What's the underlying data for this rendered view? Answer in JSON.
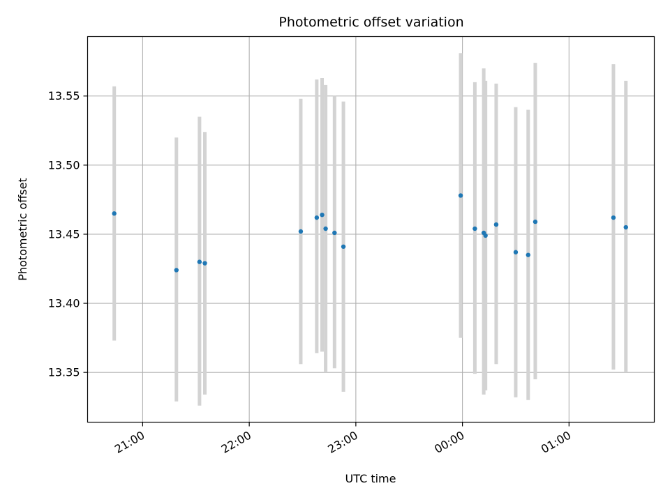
{
  "chart_data": {
    "type": "scatter",
    "title": "Photometric offset variation",
    "xlabel": "UTC time",
    "ylabel": "Photometric offset",
    "x_tick_labels": [
      "21:00",
      "22:00",
      "23:00",
      "00:00",
      "01:00"
    ],
    "y_tick_labels": [
      "13.35",
      "13.40",
      "13.45",
      "13.50",
      "13.55"
    ],
    "grid": true,
    "errorbar_color": "#d3d3d3",
    "marker_color": "#1f77b4",
    "xlim": [
      "20:29",
      "01:48"
    ],
    "ylim": [
      13.314,
      13.593
    ],
    "points": [
      {
        "t": "20:44",
        "y": 13.465,
        "lo": 13.373,
        "hi": 13.557
      },
      {
        "t": "21:19",
        "y": 13.424,
        "lo": 13.329,
        "hi": 13.52
      },
      {
        "t": "21:32",
        "y": 13.43,
        "lo": 13.326,
        "hi": 13.535
      },
      {
        "t": "21:35",
        "y": 13.429,
        "lo": 13.334,
        "hi": 13.524
      },
      {
        "t": "22:29",
        "y": 13.452,
        "lo": 13.356,
        "hi": 13.548
      },
      {
        "t": "22:38",
        "y": 13.462,
        "lo": 13.364,
        "hi": 13.562
      },
      {
        "t": "22:41",
        "y": 13.464,
        "lo": 13.365,
        "hi": 13.563
      },
      {
        "t": "22:43",
        "y": 13.454,
        "lo": 13.35,
        "hi": 13.558
      },
      {
        "t": "22:48",
        "y": 13.451,
        "lo": 13.353,
        "hi": 13.55
      },
      {
        "t": "22:53",
        "y": 13.441,
        "lo": 13.336,
        "hi": 13.546
      },
      {
        "t": "23:59",
        "y": 13.478,
        "lo": 13.375,
        "hi": 13.581
      },
      {
        "t": "00:07",
        "y": 13.454,
        "lo": 13.349,
        "hi": 13.56
      },
      {
        "t": "00:12",
        "y": 13.451,
        "lo": 13.334,
        "hi": 13.57
      },
      {
        "t": "00:13",
        "y": 13.449,
        "lo": 13.337,
        "hi": 13.561
      },
      {
        "t": "00:19",
        "y": 13.457,
        "lo": 13.356,
        "hi": 13.559
      },
      {
        "t": "00:30",
        "y": 13.437,
        "lo": 13.332,
        "hi": 13.542
      },
      {
        "t": "00:37",
        "y": 13.435,
        "lo": 13.33,
        "hi": 13.54
      },
      {
        "t": "00:41",
        "y": 13.459,
        "lo": 13.345,
        "hi": 13.574
      },
      {
        "t": "01:25",
        "y": 13.462,
        "lo": 13.352,
        "hi": 13.573
      },
      {
        "t": "01:32",
        "y": 13.455,
        "lo": 13.35,
        "hi": 13.561
      }
    ]
  }
}
